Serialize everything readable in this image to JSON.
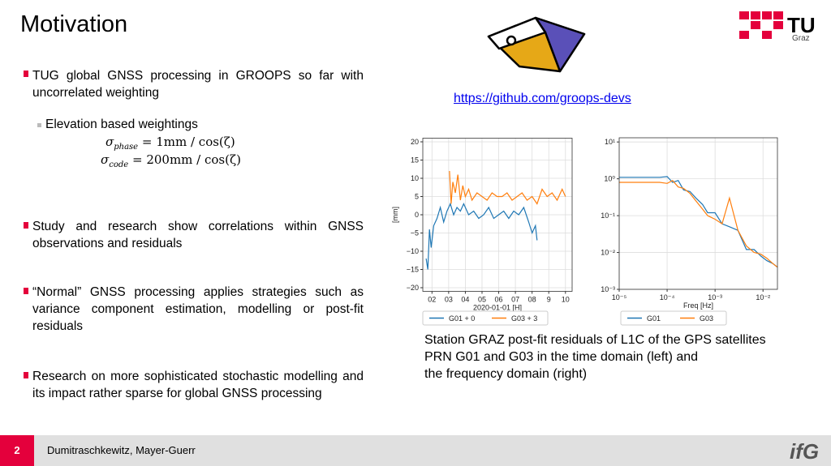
{
  "title": "Motivation",
  "logo": {
    "name": "TU",
    "city": "Graz"
  },
  "link": "https://github.com/groops-devs",
  "bullets": [
    {
      "text": "TUG global GNSS processing in GROOPS so far with uncorrelated weighting",
      "sub": "Elevation based weightings",
      "formulas": [
        {
          "symbol": "σ",
          "subscript": "phase",
          "rhs": "= 1mm / cos(ζ)"
        },
        {
          "symbol": "σ",
          "subscript": "code",
          "rhs": "= 200mm / cos(ζ)"
        }
      ]
    },
    {
      "text": "Study and research show correlations within GNSS observations and residuals"
    },
    {
      "text": "“Normal” GNSS processing applies strategies such as variance component estimation, modelling or post-fit residuals"
    },
    {
      "text": "Research on more sophisticated stochastic modelling and its impact rather sparse for global GNSS processing"
    }
  ],
  "caption": [
    "Station GRAZ post-fit residuals of L1C of the GPS satellites",
    "PRN G01 and G03 in the time domain (left) and",
    "the frequency domain (right)"
  ],
  "footer": {
    "page": 2,
    "authors": "Dumitraschkewitz, Mayer-Guerr",
    "logo": "ifG"
  },
  "charts": [
    {
      "type": "line",
      "xlabel": "2020-01-01 [H]",
      "ylabel": "[mm]",
      "grid": true,
      "xlim": [
        1.45,
        10.4
      ],
      "ylim": [
        -21,
        21
      ],
      "xticks": [
        {
          "value": 2,
          "label": "02"
        },
        {
          "value": 3,
          "label": "03"
        },
        {
          "value": 4,
          "label": "04"
        },
        {
          "value": 5,
          "label": "05"
        },
        {
          "value": 6,
          "label": "06"
        },
        {
          "value": 7,
          "label": "07"
        },
        {
          "value": 8,
          "label": "08"
        },
        9,
        10
      ],
      "yticks": [
        {
          "value": -20,
          "label": "−20"
        },
        {
          "value": -15,
          "label": "−15"
        },
        {
          "value": -10,
          "label": "−10"
        },
        {
          "value": -5,
          "label": "−5"
        },
        0,
        5,
        10,
        15,
        20
      ],
      "series": [
        {
          "name": "G01 + 0",
          "color": "#1f77b4",
          "x": [
            1.65,
            1.75,
            1.85,
            1.95,
            2.1,
            2.3,
            2.5,
            2.7,
            2.9,
            3.1,
            3.3,
            3.5,
            3.7,
            3.9,
            4.2,
            4.5,
            4.8,
            5.1,
            5.4,
            5.7,
            6.0,
            6.3,
            6.6,
            6.9,
            7.2,
            7.5,
            7.8,
            8.0,
            8.2,
            8.3
          ],
          "values": [
            -12,
            -15,
            -4,
            -9,
            -3,
            -1,
            2,
            -2,
            1,
            3,
            0,
            2,
            1,
            3,
            0,
            1,
            -1,
            0,
            2,
            -1,
            0,
            1,
            -1,
            1,
            0,
            2,
            -2,
            -5,
            -3,
            -7
          ]
        },
        {
          "name": "G03 + 3",
          "color": "#ff7f0e",
          "x": [
            3.05,
            3.15,
            3.25,
            3.4,
            3.55,
            3.7,
            3.85,
            4.0,
            4.2,
            4.4,
            4.7,
            5.0,
            5.3,
            5.6,
            5.9,
            6.2,
            6.5,
            6.8,
            7.1,
            7.4,
            7.7,
            8.0,
            8.3,
            8.6,
            8.9,
            9.2,
            9.5,
            9.8,
            10.0
          ],
          "values": [
            12,
            3,
            9,
            6,
            11,
            4,
            8,
            5,
            7,
            4,
            6,
            5,
            4,
            6,
            5,
            5,
            6,
            4,
            5,
            6,
            4,
            5,
            3,
            7,
            5,
            6,
            4,
            7,
            5
          ]
        }
      ]
    },
    {
      "type": "line",
      "xlabel": "Freq [Hz]",
      "grid": true,
      "xlog": true,
      "ylog": true,
      "xlim": [
        1e-05,
        0.02
      ],
      "ylim": [
        0.001,
        13
      ],
      "xticks": [
        {
          "value": 1e-05,
          "label": "10⁻⁵"
        },
        {
          "value": 0.0001,
          "label": "10⁻⁴"
        },
        {
          "value": 0.001,
          "label": "10⁻³"
        },
        {
          "value": 0.01,
          "label": "10⁻²"
        }
      ],
      "yticks": [
        {
          "value": 0.001,
          "label": "10⁻³"
        },
        {
          "value": 0.01,
          "label": "10⁻²"
        },
        {
          "value": 0.1,
          "label": "10⁻¹"
        },
        {
          "value": 1,
          "label": "10⁰"
        },
        {
          "value": 10,
          "label": "10¹"
        }
      ],
      "series": [
        {
          "name": "G01",
          "color": "#1f77b4",
          "x": [
            1e-05,
            2e-05,
            4e-05,
            7e-05,
            0.0001,
            0.00013,
            0.00017,
            0.00022,
            0.0003,
            0.0004,
            0.00055,
            0.0007,
            0.001,
            0.0014,
            0.002,
            0.003,
            0.0045,
            0.0065,
            0.009,
            0.012,
            0.016,
            0.02
          ],
          "values": [
            1.1,
            1.1,
            1.1,
            1.1,
            1.15,
            0.8,
            0.9,
            0.5,
            0.45,
            0.3,
            0.2,
            0.12,
            0.12,
            0.06,
            0.05,
            0.04,
            0.012,
            0.012,
            0.008,
            0.006,
            0.005,
            0.004
          ]
        },
        {
          "name": "G03",
          "color": "#ff7f0e",
          "x": [
            1e-05,
            2e-05,
            4e-05,
            7e-05,
            0.0001,
            0.00013,
            0.00017,
            0.00022,
            0.0003,
            0.0004,
            0.00055,
            0.0007,
            0.001,
            0.0014,
            0.002,
            0.003,
            0.0045,
            0.0065,
            0.009,
            0.012,
            0.016,
            0.02
          ],
          "values": [
            0.8,
            0.8,
            0.8,
            0.8,
            0.75,
            0.9,
            0.6,
            0.55,
            0.4,
            0.25,
            0.15,
            0.1,
            0.08,
            0.06,
            0.3,
            0.04,
            0.015,
            0.01,
            0.009,
            0.007,
            0.005,
            0.004
          ]
        }
      ]
    }
  ]
}
